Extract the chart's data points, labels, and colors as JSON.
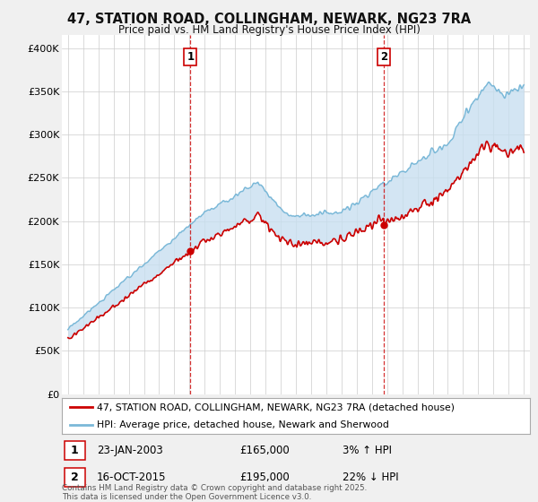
{
  "title": "47, STATION ROAD, COLLINGHAM, NEWARK, NG23 7RA",
  "subtitle": "Price paid vs. HM Land Registry's House Price Index (HPI)",
  "legend_line1": "47, STATION ROAD, COLLINGHAM, NEWARK, NG23 7RA (detached house)",
  "legend_line2": "HPI: Average price, detached house, Newark and Sherwood",
  "annotation1_date": "23-JAN-2003",
  "annotation1_price": "£165,000",
  "annotation1_hpi": "3% ↑ HPI",
  "annotation2_date": "16-OCT-2015",
  "annotation2_price": "£195,000",
  "annotation2_hpi": "22% ↓ HPI",
  "footer": "Contains HM Land Registry data © Crown copyright and database right 2025.\nThis data is licensed under the Open Government Licence v3.0.",
  "sale1_year": 2003.06,
  "sale1_price": 165000,
  "sale2_year": 2015.8,
  "sale2_price": 195000,
  "hpi_color": "#7ab8d8",
  "hpi_fill_color": "#c8dff0",
  "price_color": "#cc0000",
  "background_color": "#f0f0f0",
  "plot_background": "#ffffff",
  "yticks": [
    0,
    50000,
    100000,
    150000,
    200000,
    250000,
    300000,
    350000,
    400000
  ],
  "ylim": [
    0,
    415000
  ],
  "xlim_start": 1994.6,
  "xlim_end": 2025.4
}
